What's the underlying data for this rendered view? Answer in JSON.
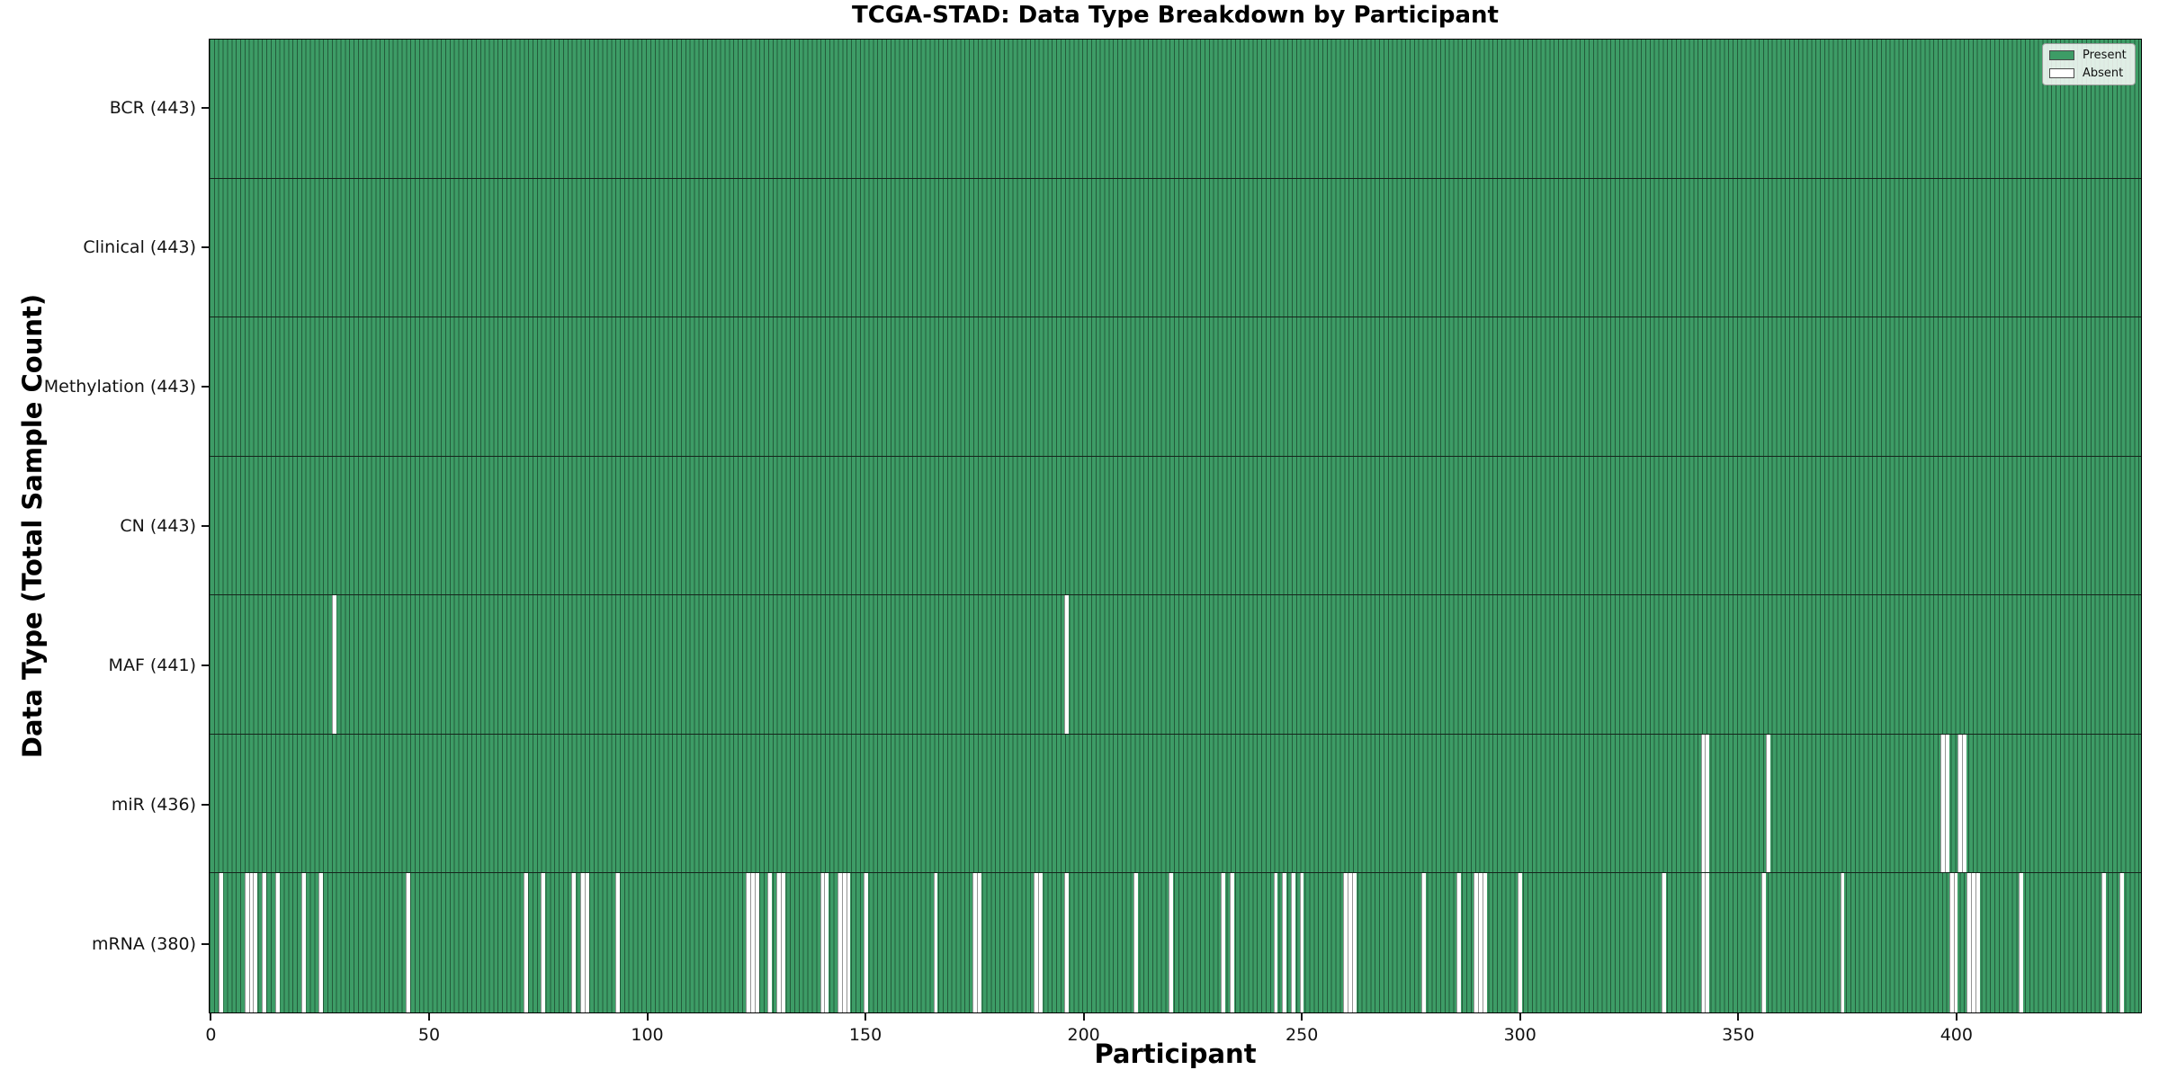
{
  "figure": {
    "title": "TCGA-STAD: Data Type Breakdown by Participant",
    "xlabel": "Participant",
    "ylabel": "Data Type (Total Sample Count)"
  },
  "colors": {
    "present": "#3d9c66",
    "absent": "#ffffff",
    "bar_edge": "rgba(0,0,0,0.42)",
    "row_separator": "#15241b",
    "plot_border": "#000000",
    "legend_border": "#9b9b9b",
    "text": "#131313"
  },
  "legend": {
    "position": "upper right",
    "items": [
      {
        "label": "Present",
        "color": "#3d9c66"
      },
      {
        "label": "Absent",
        "color": "#ffffff"
      }
    ]
  },
  "chart_data": {
    "type": "heatmap",
    "title": "TCGA-STAD: Data Type Breakdown by Participant",
    "xlabel": "Participant",
    "ylabel": "Data Type (Total Sample Count)",
    "x_range": [
      0,
      443
    ],
    "n_participants": 443,
    "x_ticks": [
      0,
      50,
      100,
      150,
      200,
      250,
      300,
      350,
      400
    ],
    "grid": false,
    "legend_entries": [
      "Present",
      "Absent"
    ],
    "legend_position": "upper right",
    "present_color": "#3d9c66",
    "absent_color": "#ffffff",
    "rows": [
      {
        "name": "BCR",
        "label": "BCR (443)",
        "total": 443,
        "absent_participants": []
      },
      {
        "name": "Clinical",
        "label": "Clinical (443)",
        "total": 443,
        "absent_participants": []
      },
      {
        "name": "Methylation",
        "label": "Methylation (443)",
        "total": 443,
        "absent_participants": []
      },
      {
        "name": "CN",
        "label": "CN (443)",
        "total": 443,
        "absent_participants": []
      },
      {
        "name": "MAF",
        "label": "MAF (441)",
        "total": 441,
        "absent_participants": [
          28,
          196
        ]
      },
      {
        "name": "miR",
        "label": "miR (436)",
        "total": 436,
        "absent_participants": [
          342,
          343,
          357,
          397,
          398,
          401,
          402
        ]
      },
      {
        "name": "mRNA",
        "label": "mRNA (380)",
        "total": 380,
        "absent_participants": [
          2,
          8,
          9,
          10,
          12,
          15,
          21,
          25,
          45,
          72,
          76,
          83,
          85,
          86,
          93,
          123,
          124,
          125,
          128,
          130,
          131,
          140,
          141,
          144,
          145,
          146,
          150,
          166,
          175,
          176,
          189,
          190,
          196,
          212,
          220,
          232,
          234,
          244,
          246,
          248,
          250,
          260,
          261,
          262,
          278,
          286,
          290,
          291,
          292,
          300,
          333,
          342,
          343,
          356,
          374,
          399,
          400,
          403,
          404,
          405,
          415,
          434,
          438
        ]
      }
    ]
  }
}
